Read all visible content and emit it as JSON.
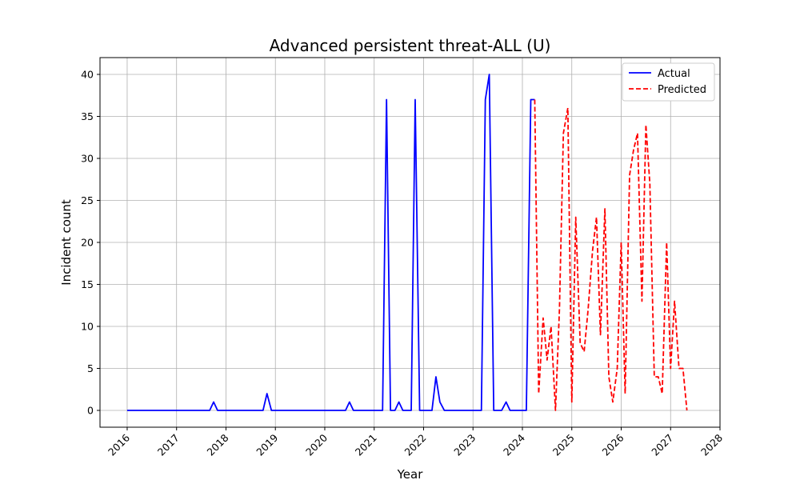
{
  "chart_data": {
    "type": "line",
    "title": "Advanced persistent threat-ALL (U)",
    "xlabel": "Year",
    "ylabel": "Incident count",
    "xlim": [
      2015.45,
      2028.0
    ],
    "ylim": [
      -2.0,
      42.0
    ],
    "x_ticks": [
      2016,
      2017,
      2018,
      2019,
      2020,
      2021,
      2022,
      2023,
      2024,
      2025,
      2026,
      2027,
      2028
    ],
    "x_tick_labels": [
      "2016",
      "2017",
      "2018",
      "2019",
      "2020",
      "2021",
      "2022",
      "2023",
      "2024",
      "2025",
      "2026",
      "2027",
      "2028"
    ],
    "y_ticks": [
      0,
      5,
      10,
      15,
      20,
      25,
      30,
      35,
      40
    ],
    "y_tick_labels": [
      "0",
      "5",
      "10",
      "15",
      "20",
      "25",
      "30",
      "35",
      "40"
    ],
    "grid": true,
    "legend_position": "top-right",
    "series": [
      {
        "name": "Actual",
        "color": "#0000ff",
        "style": "solid",
        "x": [
          2016.0,
          2017.67,
          2017.75,
          2017.83,
          2018.75,
          2018.83,
          2018.92,
          2020.42,
          2020.5,
          2020.58,
          2021.17,
          2021.25,
          2021.33,
          2021.42,
          2021.5,
          2021.58,
          2021.75,
          2021.83,
          2021.92,
          2022.17,
          2022.25,
          2022.33,
          2022.42,
          2023.17,
          2023.25,
          2023.33,
          2023.42,
          2023.58,
          2023.67,
          2023.75,
          2024.08,
          2024.17,
          2024.25
        ],
        "y": [
          0,
          0,
          1,
          0,
          0,
          2,
          0,
          0,
          1,
          0,
          0,
          37,
          0,
          0,
          1,
          0,
          0,
          37,
          0,
          0,
          4,
          1,
          0,
          0,
          37,
          40,
          0,
          0,
          1,
          0,
          0,
          37,
          37
        ]
      },
      {
        "name": "Predicted",
        "color": "#ff0000",
        "style": "dashed",
        "x": [
          2024.25,
          2024.33,
          2024.42,
          2024.5,
          2024.58,
          2024.67,
          2024.75,
          2024.83,
          2024.92,
          2025.0,
          2025.08,
          2025.17,
          2025.25,
          2025.33,
          2025.42,
          2025.5,
          2025.58,
          2025.67,
          2025.75,
          2025.83,
          2025.92,
          2026.0,
          2026.08,
          2026.17,
          2026.25,
          2026.33,
          2026.42,
          2026.5,
          2026.58,
          2026.67,
          2026.75,
          2026.83,
          2026.92,
          2027.0,
          2027.08,
          2027.17,
          2027.25,
          2027.33
        ],
        "y": [
          37,
          2,
          11,
          6,
          10,
          0,
          12,
          33,
          36,
          1,
          23,
          8,
          7,
          12,
          19,
          23,
          9,
          24,
          4,
          1,
          5,
          20,
          2,
          28,
          31,
          33,
          13,
          34,
          27,
          4,
          4,
          2,
          20,
          5,
          13,
          5,
          5,
          0
        ]
      }
    ]
  }
}
